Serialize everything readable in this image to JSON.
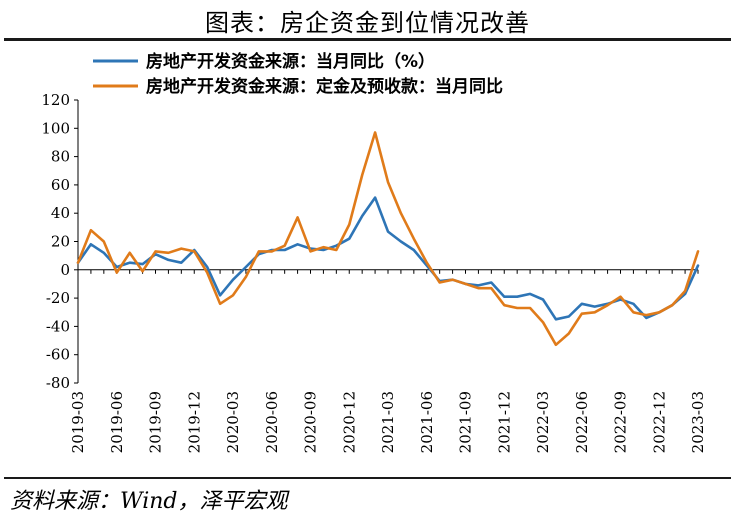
{
  "figure": {
    "title": "图表：房企资金到位情况改善",
    "source": "资料来源：Wind，泽平宏观"
  },
  "chart_data": {
    "type": "line",
    "title": "图表：房企资金到位情况改善",
    "xlabel": "",
    "ylabel": "",
    "ylim": [
      -80,
      120
    ],
    "yticks": [
      -80,
      -60,
      -40,
      -20,
      0,
      20,
      40,
      60,
      80,
      100,
      120
    ],
    "x": [
      "2019-03",
      "2019-04",
      "2019-05",
      "2019-06",
      "2019-07",
      "2019-08",
      "2019-09",
      "2019-10",
      "2019-11",
      "2019-12",
      "2020-01",
      "2020-02",
      "2020-03",
      "2020-04",
      "2020-05",
      "2020-06",
      "2020-07",
      "2020-08",
      "2020-09",
      "2020-10",
      "2020-11",
      "2020-12",
      "2021-01",
      "2021-02",
      "2021-03",
      "2021-04",
      "2021-05",
      "2021-06",
      "2021-07",
      "2021-08",
      "2021-09",
      "2021-10",
      "2021-11",
      "2021-12",
      "2022-01",
      "2022-02",
      "2022-03",
      "2022-04",
      "2022-05",
      "2022-06",
      "2022-07",
      "2022-08",
      "2022-09",
      "2022-10",
      "2022-11",
      "2022-12",
      "2023-01",
      "2023-02",
      "2023-03"
    ],
    "xtick_labels": [
      "2019-03",
      "2019-06",
      "2019-09",
      "2019-12",
      "2020-03",
      "2020-06",
      "2020-09",
      "2020-12",
      "2021-03",
      "2021-06",
      "2021-09",
      "2021-12",
      "2022-03",
      "2022-06",
      "2022-09",
      "2022-12",
      "2023-03"
    ],
    "legend_position": "top-left",
    "grid": false,
    "series": [
      {
        "name": "房地产开发资金来源：当月同比（%）",
        "color": "#2e75b6",
        "values": [
          5,
          18,
          12,
          2,
          5,
          4,
          11,
          7,
          5,
          14,
          2,
          -18,
          -7,
          2,
          11,
          14,
          14,
          18,
          15,
          14,
          17,
          22,
          38,
          51,
          27,
          20,
          14,
          3,
          -8,
          -7,
          -10,
          -11,
          -9,
          -19,
          -19,
          -17,
          -21,
          -35,
          -33,
          -24,
          -26,
          -24,
          -21,
          -24,
          -34,
          -30,
          -25,
          -17,
          3
        ]
      },
      {
        "name": "房地产开发资金来源：定金及预收款：当月同比",
        "color": "#e07b1a",
        "values": [
          5,
          28,
          20,
          -2,
          12,
          -1,
          13,
          12,
          15,
          13,
          -2,
          -24,
          -18,
          -5,
          13,
          13,
          17,
          37,
          13,
          16,
          14,
          32,
          67,
          97,
          62,
          40,
          22,
          5,
          -9,
          -7,
          -10,
          -13,
          -13,
          -25,
          -27,
          -27,
          -37,
          -53,
          -45,
          -31,
          -30,
          -25,
          -19,
          -30,
          -32,
          -30,
          -25,
          -15,
          13
        ]
      }
    ]
  }
}
